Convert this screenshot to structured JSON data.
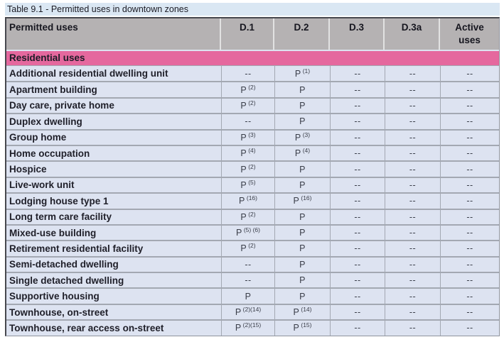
{
  "table": {
    "title": "Table 9.1 - Permitted uses in downtown zones",
    "columns": [
      "Permitted uses",
      "D.1",
      "D.2",
      "D.3",
      "D.3a",
      "Active uses"
    ],
    "section_header": "Residential uses",
    "empty_marker": "--",
    "legend": {
      "permitted_symbol": "P"
    },
    "colors": {
      "section_pink": "#e5689e",
      "header_gray": "#b5b2b3",
      "row_blue": "#dde3f1",
      "title_band_blue": "#dae7f3"
    },
    "rows": [
      {
        "use": "Additional residential dwelling unit",
        "cells": [
          [
            "--",
            ""
          ],
          [
            "P",
            "(1)"
          ],
          [
            "--",
            ""
          ],
          [
            "--",
            ""
          ],
          [
            "--",
            ""
          ]
        ]
      },
      {
        "use": "Apartment building",
        "cells": [
          [
            "P",
            "(2)"
          ],
          [
            "P",
            ""
          ],
          [
            "--",
            ""
          ],
          [
            "--",
            ""
          ],
          [
            "--",
            ""
          ]
        ]
      },
      {
        "use": "Day care, private home",
        "cells": [
          [
            "P",
            "(2)"
          ],
          [
            "P",
            ""
          ],
          [
            "--",
            ""
          ],
          [
            "--",
            ""
          ],
          [
            "--",
            ""
          ]
        ]
      },
      {
        "use": "Duplex dwelling",
        "cells": [
          [
            "--",
            ""
          ],
          [
            "P",
            ""
          ],
          [
            "--",
            ""
          ],
          [
            "--",
            ""
          ],
          [
            "--",
            ""
          ]
        ]
      },
      {
        "use": "Group home",
        "cells": [
          [
            "P",
            "(3)"
          ],
          [
            "P",
            "(3)"
          ],
          [
            "--",
            ""
          ],
          [
            "--",
            ""
          ],
          [
            "--",
            ""
          ]
        ]
      },
      {
        "use": "Home occupation",
        "cells": [
          [
            "P",
            "(4)"
          ],
          [
            "P",
            "(4)"
          ],
          [
            "--",
            ""
          ],
          [
            "--",
            ""
          ],
          [
            "--",
            ""
          ]
        ]
      },
      {
        "use": "Hospice",
        "cells": [
          [
            "P",
            "(2)"
          ],
          [
            "P",
            ""
          ],
          [
            "--",
            ""
          ],
          [
            "--",
            ""
          ],
          [
            "--",
            ""
          ]
        ]
      },
      {
        "use": "Live-work unit",
        "cells": [
          [
            "P",
            "(5)"
          ],
          [
            "P",
            ""
          ],
          [
            "--",
            ""
          ],
          [
            "--",
            ""
          ],
          [
            "--",
            ""
          ]
        ]
      },
      {
        "use": "Lodging house type 1",
        "cells": [
          [
            "P",
            "(16)"
          ],
          [
            "P",
            "(16)"
          ],
          [
            "--",
            ""
          ],
          [
            "--",
            ""
          ],
          [
            "--",
            ""
          ]
        ]
      },
      {
        "use": "Long term care facility",
        "cells": [
          [
            "P",
            "(2)"
          ],
          [
            "P",
            ""
          ],
          [
            "--",
            ""
          ],
          [
            "--",
            ""
          ],
          [
            "--",
            ""
          ]
        ]
      },
      {
        "use": "Mixed-use building",
        "cells": [
          [
            "P",
            "(5) (6)"
          ],
          [
            "P",
            ""
          ],
          [
            "--",
            ""
          ],
          [
            "--",
            ""
          ],
          [
            "--",
            ""
          ]
        ]
      },
      {
        "use": "Retirement residential facility",
        "cells": [
          [
            "P",
            "(2)"
          ],
          [
            "P",
            ""
          ],
          [
            "--",
            ""
          ],
          [
            "--",
            ""
          ],
          [
            "--",
            ""
          ]
        ]
      },
      {
        "use": "Semi-detached dwelling",
        "cells": [
          [
            "--",
            ""
          ],
          [
            "P",
            ""
          ],
          [
            "--",
            ""
          ],
          [
            "--",
            ""
          ],
          [
            "--",
            ""
          ]
        ]
      },
      {
        "use": "Single detached dwelling",
        "cells": [
          [
            "--",
            ""
          ],
          [
            "P",
            ""
          ],
          [
            "--",
            ""
          ],
          [
            "--",
            ""
          ],
          [
            "--",
            ""
          ]
        ]
      },
      {
        "use": "Supportive housing",
        "cells": [
          [
            "P",
            ""
          ],
          [
            "P",
            ""
          ],
          [
            "--",
            ""
          ],
          [
            "--",
            ""
          ],
          [
            "--",
            ""
          ]
        ]
      },
      {
        "use": "Townhouse, on-street",
        "cells": [
          [
            "P",
            "(2)(14)"
          ],
          [
            "P",
            "(14)"
          ],
          [
            "--",
            ""
          ],
          [
            "--",
            ""
          ],
          [
            "--",
            ""
          ]
        ]
      },
      {
        "use": "Townhouse, rear access on-street",
        "cells": [
          [
            "P",
            "(2)(15)"
          ],
          [
            "P",
            "(15)"
          ],
          [
            "--",
            ""
          ],
          [
            "--",
            ""
          ],
          [
            "--",
            ""
          ]
        ]
      }
    ]
  }
}
